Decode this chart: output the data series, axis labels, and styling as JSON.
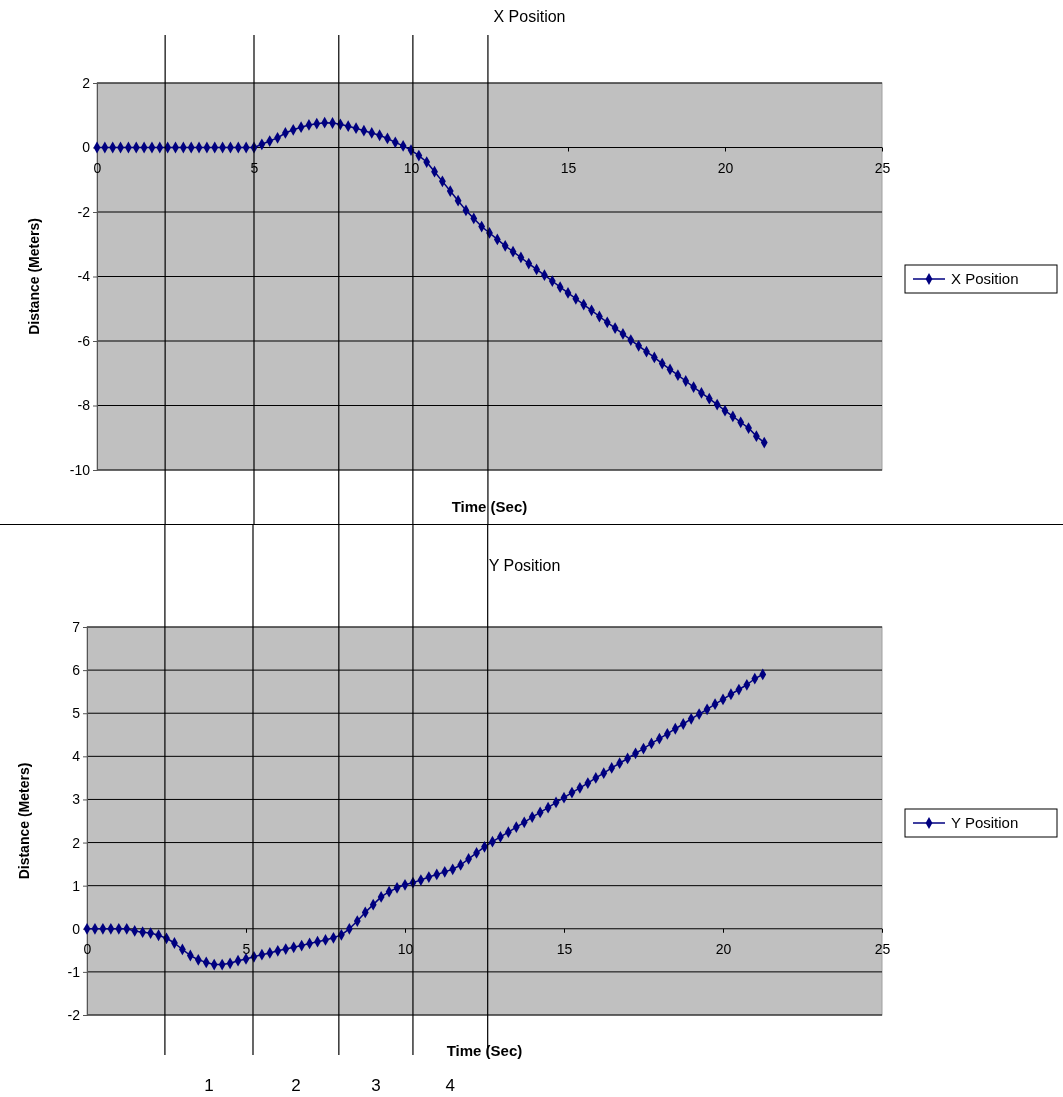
{
  "chart_data": [
    {
      "type": "line",
      "title": "X Position",
      "xlabel": "Time (Sec)",
      "ylabel": "Distance (Meters)",
      "xlim": [
        0,
        25
      ],
      "xticks": [
        0,
        5,
        10,
        15,
        20,
        25
      ],
      "ylim": [
        -10,
        2
      ],
      "yticks": [
        -10,
        -8,
        -6,
        -4,
        -2,
        0,
        2
      ],
      "grid": "y",
      "legend": "right",
      "marker": "diamond",
      "line_style": "solid",
      "ref_lines": [
        {
          "axis": "x",
          "value": 2.17,
          "color": "#000000"
        },
        {
          "axis": "x",
          "value": 5.0,
          "color": "#000000"
        },
        {
          "axis": "x",
          "value": 7.7,
          "color": "#000000"
        },
        {
          "axis": "x",
          "value": 10.06,
          "color": "#000000"
        },
        {
          "axis": "x",
          "value": 12.45,
          "color": "#000000"
        }
      ],
      "x": [
        0,
        0.25,
        0.5,
        0.75,
        1,
        1.25,
        1.5,
        1.75,
        2,
        2.25,
        2.5,
        2.75,
        3,
        3.25,
        3.5,
        3.75,
        4,
        4.25,
        4.5,
        4.75,
        5,
        5.25,
        5.5,
        5.75,
        6,
        6.25,
        6.5,
        6.75,
        7,
        7.25,
        7.5,
        7.75,
        8,
        8.25,
        8.5,
        8.75,
        9,
        9.25,
        9.5,
        9.75,
        10,
        10.25,
        10.5,
        10.75,
        11,
        11.25,
        11.5,
        11.75,
        12,
        12.25,
        12.5,
        12.75,
        13,
        13.25,
        13.5,
        13.75,
        14,
        14.25,
        14.5,
        14.75,
        15,
        15.25,
        15.5,
        15.75,
        16,
        16.25,
        16.5,
        16.75,
        17,
        17.25,
        17.5,
        17.75,
        18,
        18.25,
        18.5,
        18.75,
        19,
        19.25,
        19.5,
        19.75,
        20,
        20.25,
        20.5,
        20.75,
        21,
        21.25
      ],
      "series": [
        {
          "name": "X Position",
          "color": "#000080",
          "values": [
            0,
            0,
            0,
            0,
            0,
            0,
            0,
            0,
            0,
            0,
            0,
            0,
            0,
            0,
            0,
            0,
            0,
            0,
            0,
            0,
            0,
            0.1,
            0.2,
            0.3,
            0.45,
            0.55,
            0.63,
            0.7,
            0.74,
            0.77,
            0.76,
            0.72,
            0.66,
            0.6,
            0.52,
            0.45,
            0.38,
            0.28,
            0.16,
            0.05,
            -0.08,
            -0.25,
            -0.45,
            -0.75,
            -1.05,
            -1.35,
            -1.65,
            -1.95,
            -2.2,
            -2.45,
            -2.65,
            -2.85,
            -3.05,
            -3.23,
            -3.41,
            -3.6,
            -3.78,
            -3.96,
            -4.14,
            -4.33,
            -4.51,
            -4.69,
            -4.87,
            -5.05,
            -5.24,
            -5.42,
            -5.6,
            -5.78,
            -5.97,
            -6.15,
            -6.33,
            -6.51,
            -6.7,
            -6.88,
            -7.06,
            -7.24,
            -7.43,
            -7.61,
            -7.79,
            -7.97,
            -8.16,
            -8.34,
            -8.52,
            -8.7,
            -8.95,
            -9.15
          ]
        }
      ]
    },
    {
      "type": "line",
      "title": "Y Position",
      "xlabel": "Time (Sec)",
      "ylabel": "Distance (Meters)",
      "xlim": [
        0,
        25
      ],
      "xticks": [
        0,
        5,
        10,
        15,
        20,
        25
      ],
      "ylim": [
        -2,
        7
      ],
      "yticks": [
        -2,
        -1,
        0,
        1,
        2,
        3,
        4,
        5,
        6,
        7
      ],
      "grid": "y",
      "legend": "right",
      "marker": "diamond",
      "line_style": "solid",
      "ref_lines": [
        {
          "axis": "x",
          "value": 2.45,
          "color": "#000000"
        },
        {
          "axis": "x",
          "value": 5.22,
          "color": "#000000"
        },
        {
          "axis": "x",
          "value": 7.92,
          "color": "#000000"
        },
        {
          "axis": "x",
          "value": 10.25,
          "color": "#000000"
        },
        {
          "axis": "x",
          "value": 12.6,
          "color": "#000000"
        }
      ],
      "annotations": [
        "1",
        "2",
        "3",
        "4"
      ],
      "x": [
        0,
        0.25,
        0.5,
        0.75,
        1,
        1.25,
        1.5,
        1.75,
        2,
        2.25,
        2.5,
        2.75,
        3,
        3.25,
        3.5,
        3.75,
        4,
        4.25,
        4.5,
        4.75,
        5,
        5.25,
        5.5,
        5.75,
        6,
        6.25,
        6.5,
        6.75,
        7,
        7.25,
        7.5,
        7.75,
        8,
        8.25,
        8.5,
        8.75,
        9,
        9.25,
        9.5,
        9.75,
        10,
        10.25,
        10.5,
        10.75,
        11,
        11.25,
        11.5,
        11.75,
        12,
        12.25,
        12.5,
        12.75,
        13,
        13.25,
        13.5,
        13.75,
        14,
        14.25,
        14.5,
        14.75,
        15,
        15.25,
        15.5,
        15.75,
        16,
        16.25,
        16.5,
        16.75,
        17,
        17.25,
        17.5,
        17.75,
        18,
        18.25,
        18.5,
        18.75,
        19,
        19.25,
        19.5,
        19.75,
        20,
        20.25,
        20.5,
        20.75,
        21,
        21.25
      ],
      "series": [
        {
          "name": "Y Position",
          "color": "#000080",
          "values": [
            0,
            0,
            0,
            0,
            0,
            0,
            -0.05,
            -0.08,
            -0.1,
            -0.15,
            -0.22,
            -0.33,
            -0.48,
            -0.62,
            -0.72,
            -0.78,
            -0.83,
            -0.83,
            -0.8,
            -0.74,
            -0.7,
            -0.65,
            -0.6,
            -0.56,
            -0.51,
            -0.47,
            -0.43,
            -0.39,
            -0.34,
            -0.3,
            -0.26,
            -0.21,
            -0.14,
            0,
            0.18,
            0.38,
            0.56,
            0.74,
            0.86,
            0.95,
            1.02,
            1.07,
            1.13,
            1.2,
            1.26,
            1.32,
            1.38,
            1.48,
            1.62,
            1.76,
            1.9,
            2.02,
            2.13,
            2.24,
            2.36,
            2.47,
            2.59,
            2.7,
            2.81,
            2.93,
            3.04,
            3.16,
            3.27,
            3.38,
            3.5,
            3.61,
            3.73,
            3.84,
            3.95,
            4.07,
            4.18,
            4.3,
            4.41,
            4.52,
            4.64,
            4.75,
            4.87,
            4.98,
            5.09,
            5.21,
            5.32,
            5.44,
            5.55,
            5.66,
            5.8,
            5.9
          ]
        }
      ]
    }
  ]
}
